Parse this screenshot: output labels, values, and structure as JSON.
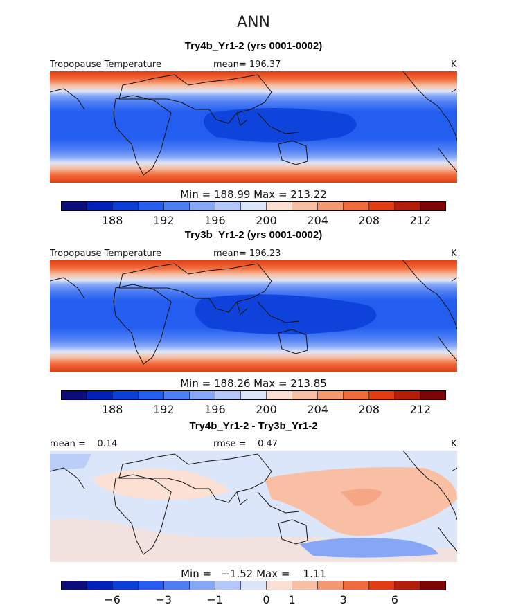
{
  "supertitle": "ANN",
  "chart_data": [
    {
      "type": "heatmap",
      "title": "Try4b_Yr1-2 (yrs 0001-0002)",
      "variable": "Tropopause Temperature",
      "units": "K",
      "mean_label": "mean= 196.37",
      "min_max_label": "Min = 188.99 Max = 213.22",
      "colorbar_colors": [
        "#0c0c7d",
        "#0022bb",
        "#0c3fd8",
        "#245ef0",
        "#4d7ef4",
        "#86a6f6",
        "#b3c8f8",
        "#dce6fa",
        "#fbe0d3",
        "#f8bfa4",
        "#f49872",
        "#f06c3c",
        "#e23c12",
        "#b51d0b",
        "#7d0505"
      ],
      "colorbar_ticks": [
        "188",
        "192",
        "196",
        "200",
        "204",
        "208",
        "212"
      ],
      "colorbar_tick_boundaries": [
        2,
        4,
        6,
        8,
        10,
        12,
        14
      ]
    },
    {
      "type": "heatmap",
      "title": "Try3b_Yr1-2 (yrs 0001-0002)",
      "variable": "Tropopause Temperature",
      "units": "K",
      "mean_label": "mean= 196.23",
      "min_max_label": "Min = 188.26 Max = 213.85",
      "colorbar_colors": [
        "#0c0c7d",
        "#0022bb",
        "#0c3fd8",
        "#245ef0",
        "#4d7ef4",
        "#86a6f6",
        "#b3c8f8",
        "#dce6fa",
        "#fbe0d3",
        "#f8bfa4",
        "#f49872",
        "#f06c3c",
        "#e23c12",
        "#b51d0b",
        "#7d0505"
      ],
      "colorbar_ticks": [
        "188",
        "192",
        "196",
        "200",
        "204",
        "208",
        "212"
      ],
      "colorbar_tick_boundaries": [
        2,
        4,
        6,
        8,
        10,
        12,
        14
      ]
    },
    {
      "type": "heatmap",
      "title": "Try4b_Yr1-2 - Try3b_Yr1-2",
      "units": "K",
      "mean_label": "mean =    0.14",
      "rmse_label": "rmse =    0.47",
      "min_max_label": "Min =   −1.52 Max =    1.11",
      "colorbar_colors": [
        "#0c0c7d",
        "#0022bb",
        "#0c3fd8",
        "#245ef0",
        "#4d7ef4",
        "#86a6f6",
        "#b3c8f8",
        "#dce6fa",
        "#fbe0d3",
        "#f8bfa4",
        "#f49872",
        "#f06c3c",
        "#e23c12",
        "#b51d0b",
        "#7d0505"
      ],
      "colorbar_ticks": [
        "−6",
        "−3",
        "−1",
        "0",
        "1",
        "3",
        "6"
      ],
      "colorbar_tick_boundaries": [
        2,
        4,
        6,
        8,
        9,
        11,
        13
      ]
    }
  ]
}
